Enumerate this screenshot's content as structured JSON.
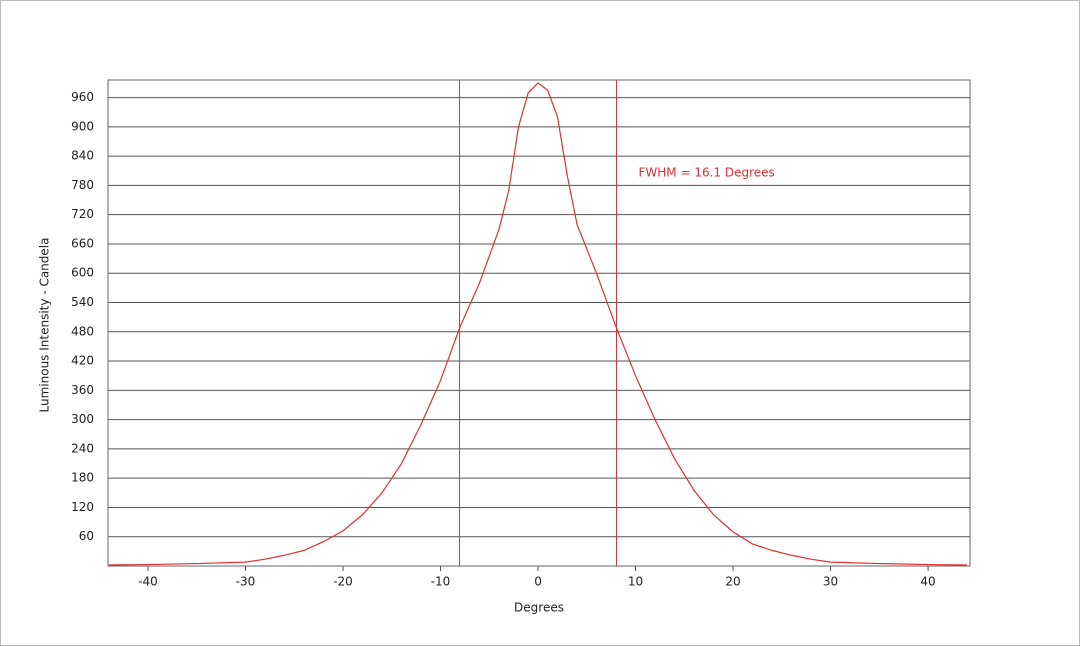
{
  "chart_data": {
    "type": "line",
    "x_label": "Degrees",
    "y_label": "Luminous Intensity - Candela",
    "annotation": "FWHM = 16.1 Degrees",
    "x": [
      -44,
      -40,
      -35,
      -30,
      -28,
      -26,
      -24,
      -22,
      -20,
      -18,
      -16,
      -14,
      -12,
      -10,
      -8,
      -6,
      -4,
      -3,
      -2,
      -1,
      0,
      1,
      2,
      3,
      4,
      6,
      8,
      10,
      12,
      14,
      16,
      18,
      20,
      22,
      24,
      26,
      28,
      30,
      35,
      40,
      44
    ],
    "series": [
      {
        "color": "#e03030",
        "values": [
          2,
          3,
          5,
          8,
          14,
          22,
          32,
          50,
          72,
          105,
          150,
          210,
          290,
          380,
          490,
          580,
          690,
          770,
          900,
          970,
          990,
          975,
          920,
          800,
          700,
          600,
          490,
          390,
          300,
          220,
          155,
          105,
          70,
          45,
          32,
          22,
          14,
          8,
          5,
          3,
          2
        ]
      }
    ],
    "vlines": [
      -8.05,
      8.05
    ],
    "xlim": [
      -44.1,
      44.3
    ],
    "ylim": [
      0,
      996
    ],
    "xticks": [
      -40,
      -30,
      -20,
      -10,
      0,
      10,
      20,
      30,
      40
    ],
    "yticks": [
      60,
      120,
      180,
      240,
      300,
      360,
      420,
      480,
      540,
      600,
      660,
      720,
      780,
      840,
      900,
      960
    ],
    "grid": true
  }
}
